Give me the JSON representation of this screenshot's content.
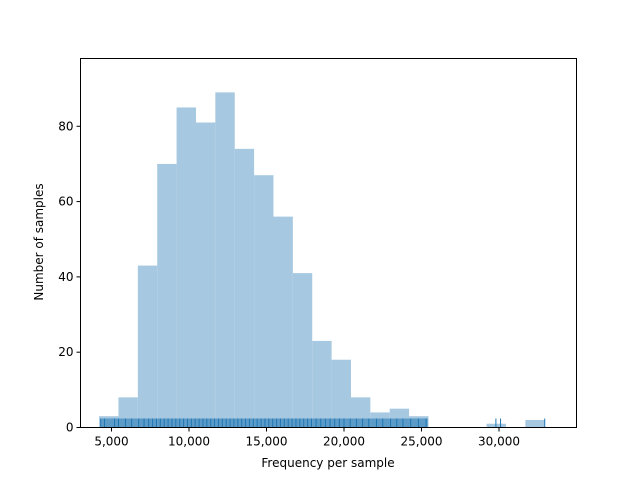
{
  "chart_data": {
    "type": "bar",
    "subtype": "histogram-with-rug",
    "title": "",
    "xlabel": "Frequency per sample",
    "ylabel": "Number of samples",
    "xlim": [
      3000,
      35000
    ],
    "ylim": [
      0,
      98
    ],
    "x_ticks": [
      5000,
      10000,
      15000,
      20000,
      25000,
      30000
    ],
    "x_tick_labels": [
      "5,000",
      "10,000",
      "15,000",
      "20,000",
      "25,000",
      "30,000"
    ],
    "y_ticks": [
      0,
      20,
      40,
      60,
      80
    ],
    "y_tick_labels": [
      "0",
      "20",
      "40",
      "60",
      "80"
    ],
    "bin_edges": [
      4200,
      5450,
      6700,
      7950,
      9200,
      10450,
      11700,
      12950,
      14200,
      15450,
      16700,
      17950,
      19200,
      20450,
      21700,
      22950,
      24200,
      25450,
      26700,
      27950,
      29200,
      30450,
      31700,
      32950
    ],
    "counts": [
      3,
      8,
      43,
      70,
      85,
      81,
      89,
      74,
      67,
      56,
      41,
      23,
      18,
      8,
      4,
      5,
      3,
      0,
      0,
      0,
      1,
      0,
      2
    ],
    "rug_dense_range": [
      4300,
      25400
    ],
    "rug_values": [
      4300,
      4550,
      5200,
      5450,
      5900,
      6300,
      6750,
      7100,
      7400,
      7650,
      7900,
      8150,
      8400,
      8650,
      8900,
      9150,
      9400,
      9650,
      9900,
      10150,
      10400,
      10650,
      10900,
      11150,
      11400,
      11650,
      11900,
      12150,
      12400,
      12650,
      12900,
      13150,
      13400,
      13650,
      13900,
      14150,
      14400,
      14650,
      14900,
      15150,
      15400,
      15650,
      15900,
      16150,
      16400,
      16650,
      16900,
      17150,
      17400,
      17650,
      17900,
      18200,
      18500,
      18800,
      19100,
      19400,
      19700,
      20000,
      20400,
      20800,
      21200,
      21600,
      22100,
      22500,
      23000,
      23400,
      23800,
      24300,
      24800,
      25300,
      29800,
      30100,
      32950
    ],
    "grid": false,
    "legend": "none",
    "colors": {
      "bars": "#a6c8e0",
      "rug": "#1f77b4",
      "axes": "#000000"
    }
  }
}
